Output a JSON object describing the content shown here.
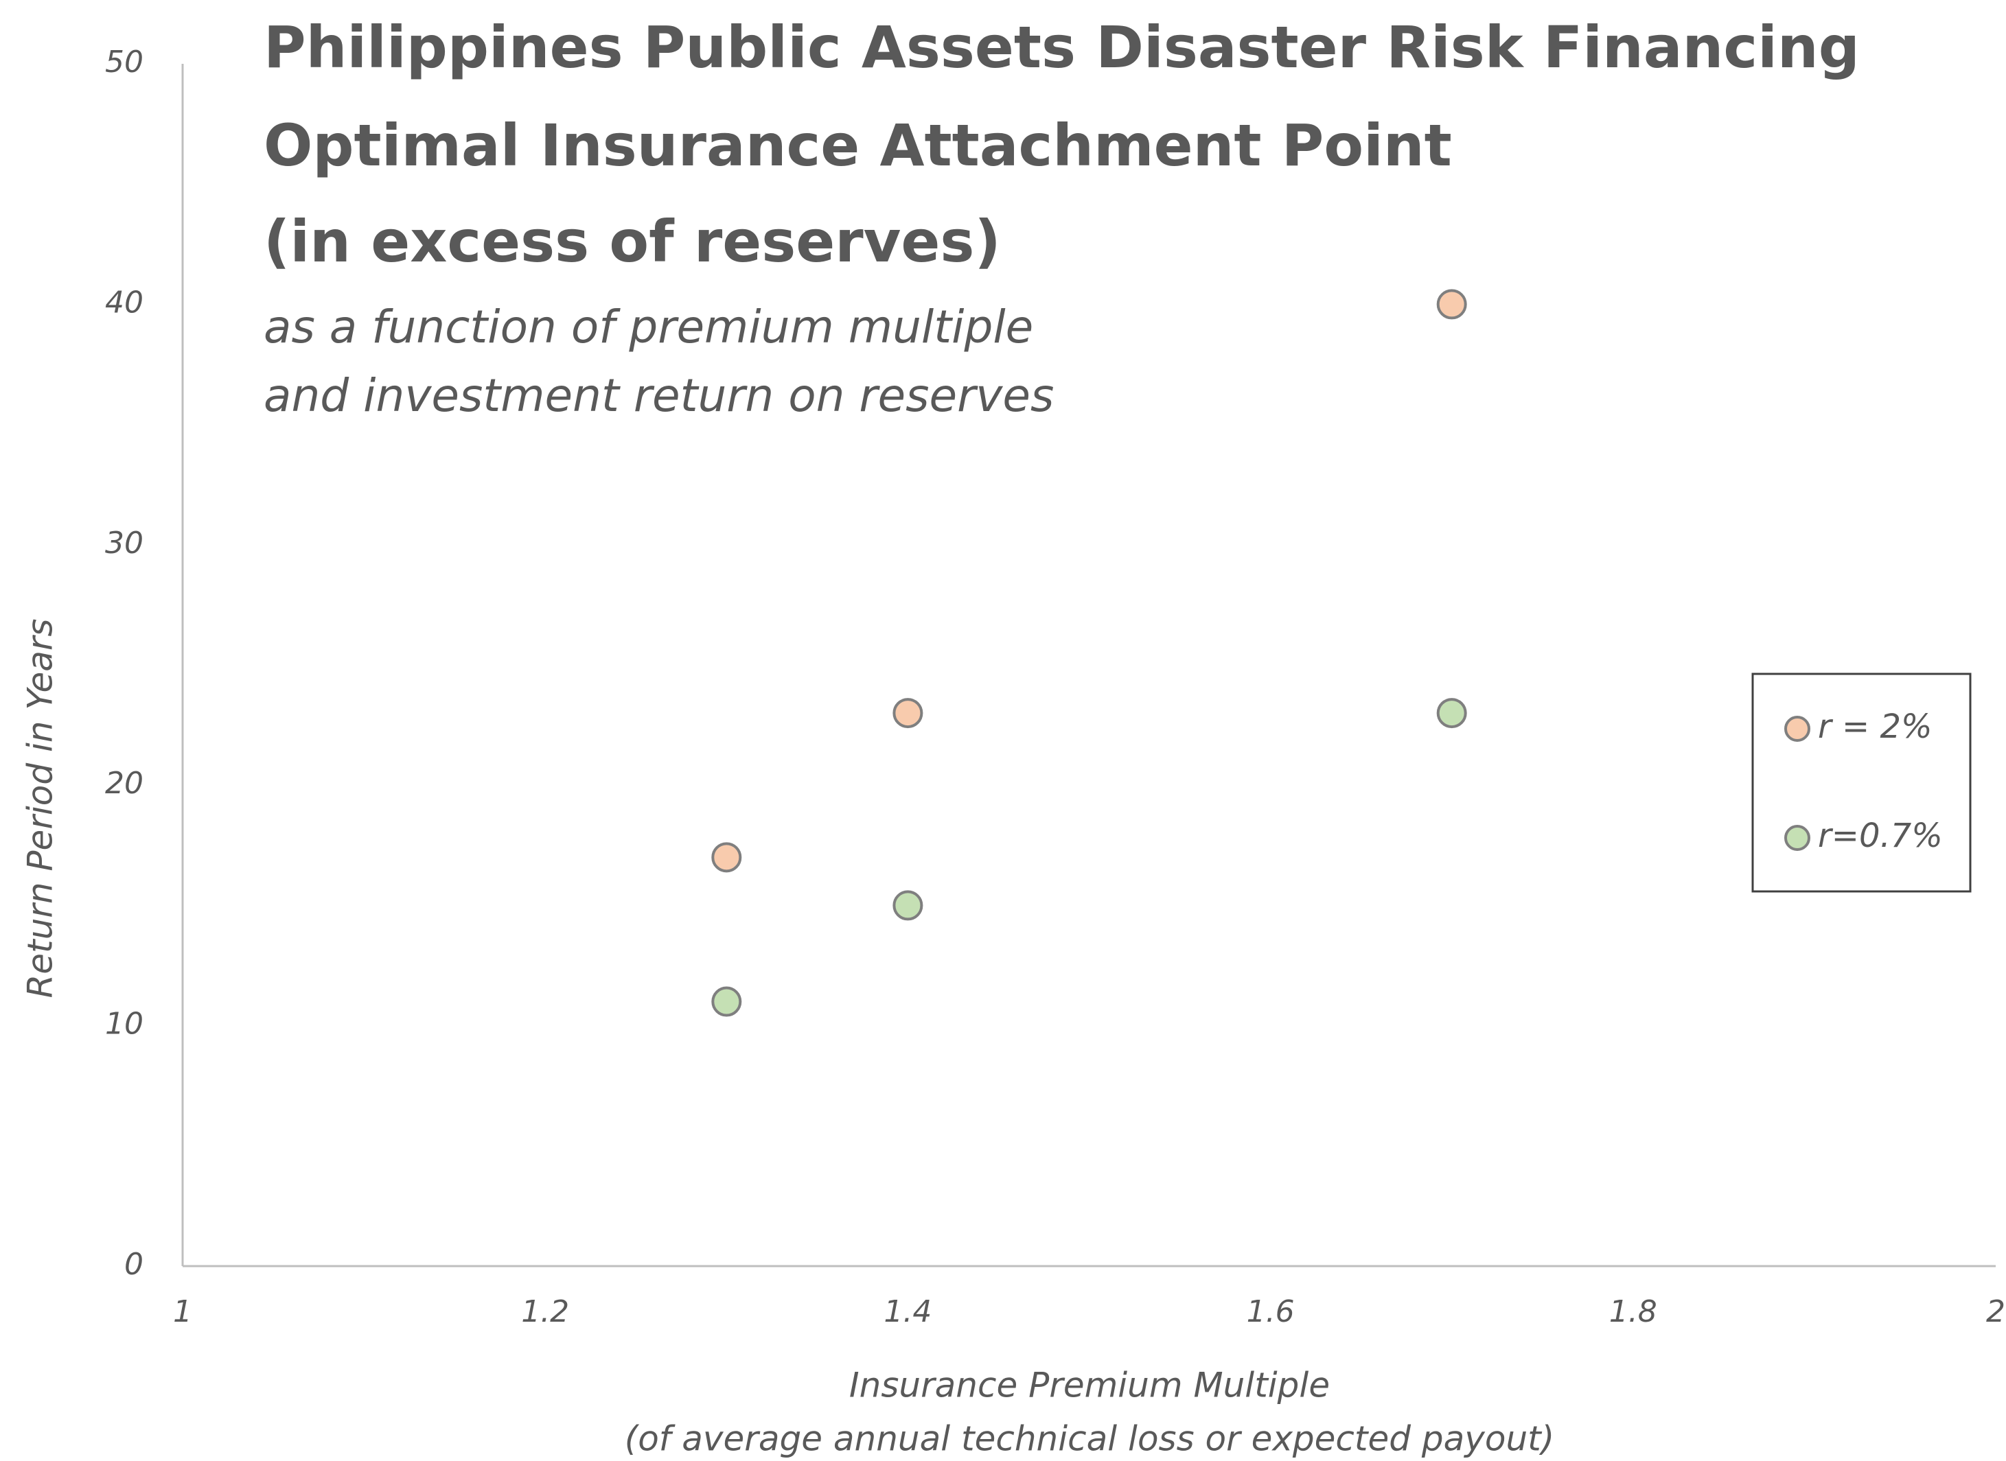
{
  "chart_data": {
    "type": "scatter",
    "title": [
      "Philippines Public Assets Disaster Risk Financing",
      "Optimal Insurance Attachment Point",
      "(in excess of reserves)"
    ],
    "subtitle": [
      "as a function of premium multiple",
      "and investment return on reserves"
    ],
    "x_label": [
      "Insurance Premium Multiple",
      "(of average annual technical loss or expected payout)"
    ],
    "y_label": "Return Period in Years",
    "series": [
      {
        "name": "r = 2%",
        "color": "#f8cbad",
        "x": [
          1.3,
          1.4,
          1.7
        ],
        "values": [
          17,
          23,
          40
        ]
      },
      {
        "name": "r=0.7%",
        "color": "#c5e0b4",
        "x": [
          1.3,
          1.4,
          1.7
        ],
        "values": [
          11,
          15,
          23
        ]
      }
    ],
    "xlim": [
      1,
      2
    ],
    "xticks": [
      1,
      1.2,
      1.4,
      1.6,
      1.8,
      2
    ],
    "ylim": [
      0,
      50
    ],
    "yticks": [
      0,
      10,
      20,
      30,
      40,
      50
    ],
    "grid": false,
    "legend": "right"
  }
}
